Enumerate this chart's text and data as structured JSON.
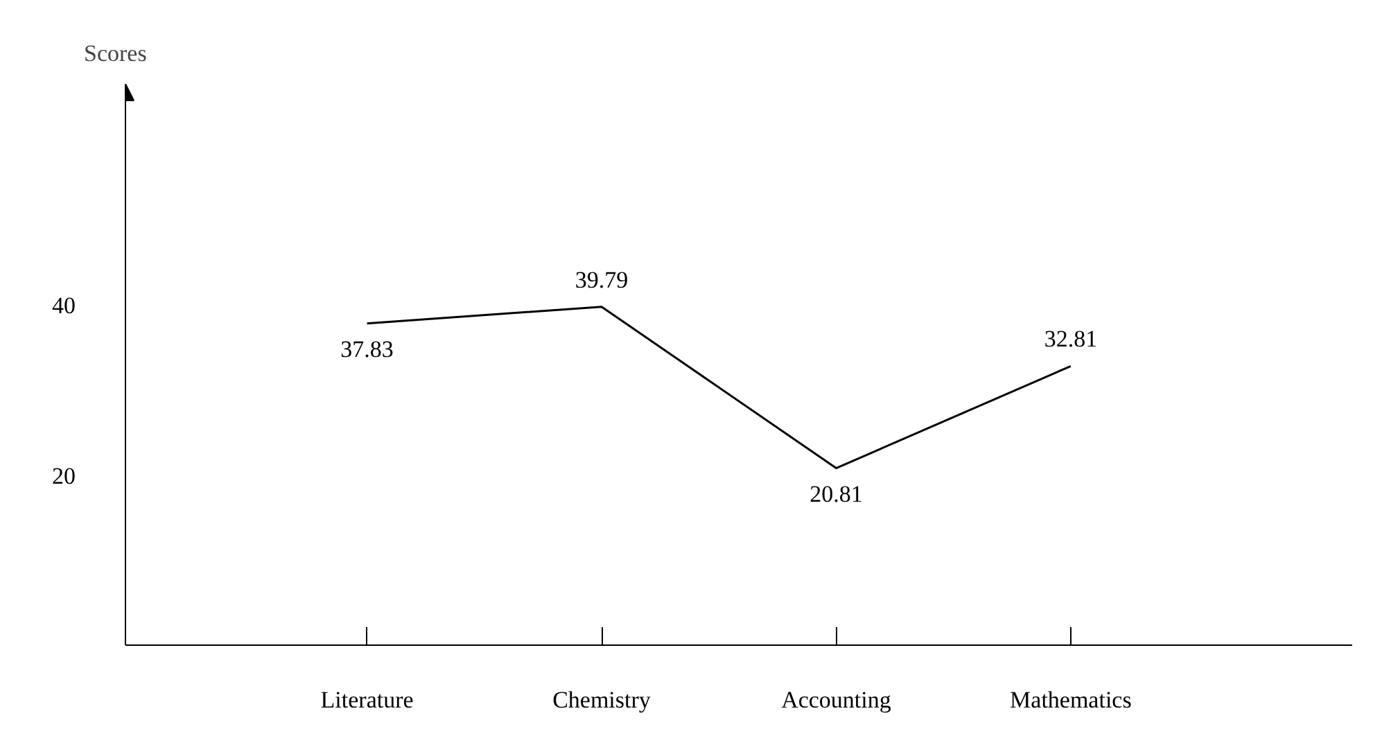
{
  "chart_data": {
    "type": "line",
    "ylabel": "Scores",
    "categories": [
      "Literature",
      "Chemistry",
      "Accounting",
      "Mathematics"
    ],
    "series": [
      {
        "color": "#000000",
        "values": [
          37.83,
          39.79,
          20.81,
          32.81
        ]
      }
    ],
    "ylim": [
      0,
      66
    ],
    "yticks": [
      20,
      40
    ],
    "data_labels": true,
    "grid": false,
    "marker": "none",
    "line_style": "solid"
  }
}
